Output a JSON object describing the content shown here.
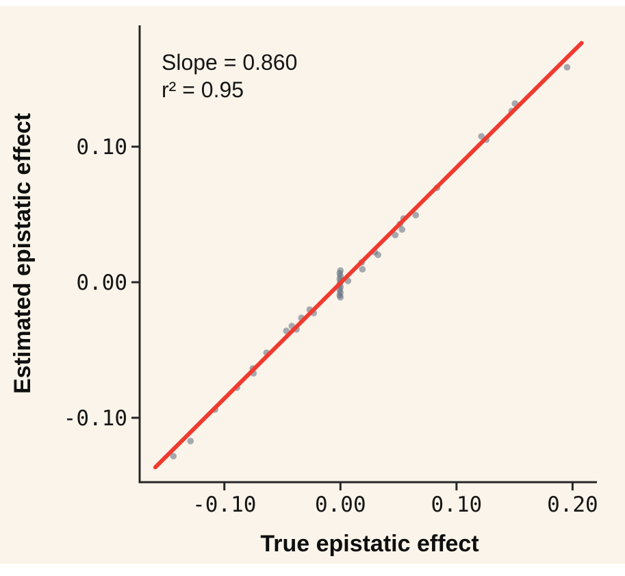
{
  "figure": {
    "background": "#faf4ea",
    "outer_margin_color": "#ffffff"
  },
  "chart_data": {
    "type": "scatter",
    "title": "",
    "xlabel": "True epistatic effect",
    "ylabel": "Estimated epistatic effect",
    "annotation_lines": [
      "Slope = 0.860",
      "r² = 0.95"
    ],
    "slope": 0.86,
    "r_squared": 0.95,
    "xlim": [
      -0.173,
      0.221
    ],
    "ylim": [
      -0.1475,
      0.1895
    ],
    "grid": false,
    "legend": "none",
    "x_ticks": [
      {
        "value": -0.1,
        "label": "-0.10"
      },
      {
        "value": 0.0,
        "label": "0.00"
      },
      {
        "value": 0.1,
        "label": "0.10"
      },
      {
        "value": 0.2,
        "label": "0.20"
      }
    ],
    "y_ticks": [
      {
        "value": 0.1,
        "label": "0.10"
      },
      {
        "value": 0.0,
        "label": "0.00"
      },
      {
        "value": -0.1,
        "label": "-0.10"
      }
    ],
    "points": [
      [
        0.1953,
        0.1586
      ],
      [
        0.1504,
        0.1318
      ],
      [
        0.1475,
        0.1263
      ],
      [
        0.1215,
        0.1076
      ],
      [
        0.1257,
        0.1051
      ],
      [
        0.0832,
        0.0697
      ],
      [
        0.0649,
        0.0495
      ],
      [
        0.0543,
        0.047
      ],
      [
        0.0513,
        0.0429
      ],
      [
        0.0531,
        0.0389
      ],
      [
        0.0472,
        0.0348
      ],
      [
        0.0295,
        0.0222
      ],
      [
        0.0324,
        0.0202
      ],
      [
        0.0183,
        0.0146
      ],
      [
        0.0189,
        0.0096
      ],
      [
        0.0065,
        0.001
      ],
      [
        0.0,
        0.0086
      ],
      [
        -0.0006,
        0.0066
      ],
      [
        0.0,
        0.0045
      ],
      [
        -0.0006,
        0.0025
      ],
      [
        0.0,
        0.0005
      ],
      [
        -0.0006,
        -0.0015
      ],
      [
        0.0,
        -0.0035
      ],
      [
        -0.0006,
        -0.0056
      ],
      [
        0.0,
        -0.0076
      ],
      [
        -0.0006,
        -0.0096
      ],
      [
        0.0,
        -0.0111
      ],
      [
        -0.0265,
        -0.0202
      ],
      [
        -0.023,
        -0.0227
      ],
      [
        -0.0336,
        -0.0263
      ],
      [
        -0.0378,
        -0.0348
      ],
      [
        -0.0419,
        -0.0323
      ],
      [
        -0.0466,
        -0.0359
      ],
      [
        -0.0637,
        -0.052
      ],
      [
        -0.0755,
        -0.0636
      ],
      [
        -0.0749,
        -0.0672
      ],
      [
        -0.0891,
        -0.0778
      ],
      [
        -0.108,
        -0.0939
      ],
      [
        -0.1292,
        -0.1172
      ],
      [
        -0.1439,
        -0.1283
      ]
    ],
    "fit_line": {
      "x_start": -0.1595,
      "y_start": -0.1365,
      "x_end": 0.2078,
      "y_end": 0.1765
    },
    "styles": {
      "background": "#faf4ea",
      "point_color": "#5e6c7c",
      "point_opacity": 0.55,
      "point_radius": 4.8,
      "line_color": "#ef3b30",
      "line_width": 6,
      "axis_color": "#262626",
      "axis_width": 3,
      "text_color": "#161616"
    }
  }
}
